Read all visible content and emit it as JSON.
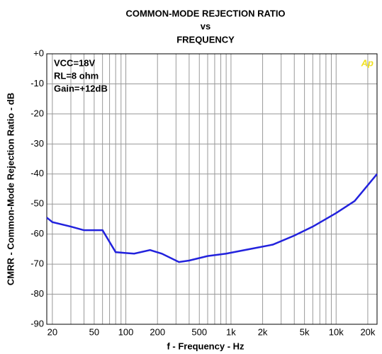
{
  "chart_data": {
    "type": "line",
    "title": [
      "COMMON-MODE REJECTION RATIO",
      "vs",
      "FREQUENCY"
    ],
    "xlabel": "f - Frequency - Hz",
    "ylabel": "CMRR - Common-Mode Rejection Ratio - dB",
    "annotations": [
      "VCC=18V",
      "RL=8 ohm",
      "Gain=+12dB"
    ],
    "logo": "Ap",
    "log_x": true,
    "grid": true,
    "xlim": [
      17.7,
      24500
    ],
    "ylim": [
      -90,
      0
    ],
    "xticks": [
      20,
      50,
      100,
      200,
      500,
      {
        "value": 1000,
        "label": "1k"
      },
      {
        "value": 2000,
        "label": "2k"
      },
      {
        "value": 5000,
        "label": "5k"
      },
      {
        "value": 10000,
        "label": "10k"
      },
      {
        "value": 20000,
        "label": "20k"
      }
    ],
    "xminorticks": [
      30,
      40,
      60,
      70,
      80,
      90,
      300,
      400,
      600,
      700,
      800,
      900,
      3000,
      4000,
      6000,
      7000,
      8000,
      9000
    ],
    "yticks": [
      {
        "value": 0,
        "label": "+0"
      },
      -10,
      -20,
      -30,
      -40,
      -50,
      -60,
      -70,
      -80,
      -90
    ],
    "x": [
      17.7,
      20,
      30,
      40,
      60,
      80,
      100,
      120,
      170,
      220,
      320,
      400,
      600,
      900,
      1500,
      2500,
      4000,
      6000,
      10000,
      15000,
      24500
    ],
    "series": [
      {
        "name": "CMRR",
        "color": "#2222dd",
        "values": [
          -54.5,
          -56,
          -57.5,
          -58.7,
          -58.7,
          -66,
          -66.3,
          -66.5,
          -65.3,
          -66.5,
          -69.3,
          -68.8,
          -67.3,
          -66.5,
          -65,
          -63.5,
          -60.5,
          -57.5,
          -53,
          -49,
          -40
        ]
      }
    ]
  }
}
